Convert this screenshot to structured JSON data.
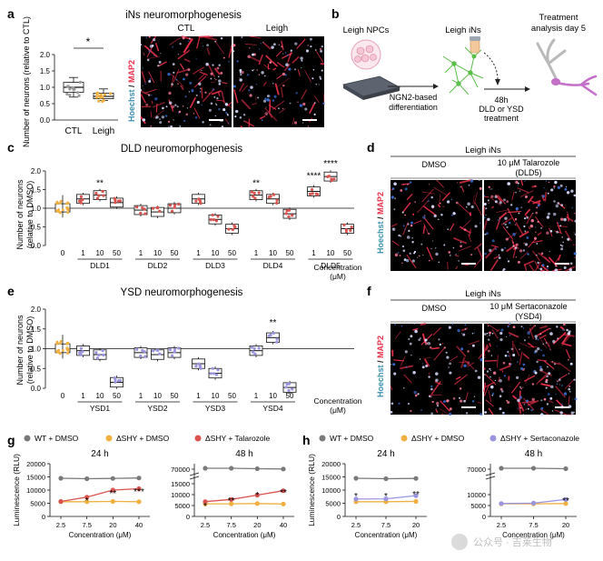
{
  "panels": {
    "a": {
      "letter": "a",
      "title": "iNs neuromorphogenesis",
      "ylabel": "Number of neurons (relative to CTL)",
      "yticks": [
        "0.0",
        "0.5",
        "1.0",
        "1.5",
        "2.0"
      ],
      "categories": [
        "CTL",
        "Leigh"
      ],
      "significance": "*",
      "micro_labels": [
        "CTL",
        "Leigh"
      ],
      "stain": {
        "hoechst": "Hoechst",
        "sep": " / ",
        "map2": "MAP2"
      }
    },
    "b": {
      "letter": "b",
      "steps": [
        "Leigh NPCs",
        "Leigh iNs",
        "Treatment analysis day 5"
      ],
      "arrow1": "NGN2-based differentiation",
      "arrow2": "48h DLD or YSD treatment"
    },
    "c": {
      "letter": "c",
      "title": "DLD neuromorphogenesis",
      "ylabel": "Number of neurons (relative to DMSO)",
      "yticks": [
        "0.0",
        "0.5",
        "1.0",
        "1.5",
        "2.0"
      ],
      "conc_ticks": [
        "0",
        "1",
        "10",
        "50",
        "1",
        "10",
        "50",
        "1",
        "10",
        "50",
        "1",
        "10",
        "50",
        "1",
        "10",
        "50"
      ],
      "groups": [
        "DLD1",
        "DLD2",
        "DLD3",
        "DLD4",
        "DLD5"
      ],
      "xlabel": "Concentration (μM)",
      "sig": [
        "**",
        "**",
        "****",
        "****"
      ]
    },
    "d": {
      "letter": "d",
      "header": "Leigh iNs",
      "col1": "DMSO",
      "col2": "10 μM Talarozole (DLD5)",
      "stain": {
        "hoechst": "Hoechst",
        "sep": " / ",
        "map2": "MAP2"
      }
    },
    "e": {
      "letter": "e",
      "title": "YSD neuromorphogenesis",
      "ylabel": "Number of neurons (relative to DMSO)",
      "yticks": [
        "0.0",
        "0.5",
        "1.0",
        "1.5",
        "2.0"
      ],
      "conc_ticks": [
        "0",
        "1",
        "10",
        "50",
        "1",
        "10",
        "50",
        "1",
        "10",
        "50",
        "1",
        "10",
        "50"
      ],
      "groups": [
        "YSD1",
        "YSD2",
        "YSD3",
        "YSD4"
      ],
      "xlabel": "Concentration (μM)",
      "sig": [
        "**"
      ]
    },
    "f": {
      "letter": "f",
      "header": "Leigh iNs",
      "col1": "DMSO",
      "col2": "10 μM Sertaconazole (YSD4)",
      "stain": {
        "hoechst": "Hoechst",
        "sep": " / ",
        "map2": "MAP2"
      }
    },
    "g": {
      "letter": "g",
      "legend": [
        "WT + DMSO",
        "ΔSHY + DMSO",
        "ΔSHY + Talarozole"
      ],
      "titles": [
        "24 h",
        "48 h"
      ],
      "ylabel": "Luminescence (RLU)",
      "yticks_left": [
        "0",
        "5000",
        "10000",
        "15000",
        "20000"
      ],
      "yticks_right": [
        "0",
        "5000",
        "10000",
        "15000",
        "70000"
      ],
      "xticks": [
        "2.5",
        "7.5",
        "20",
        "40"
      ],
      "xlabel": "Concentration (μM)",
      "sig_left": [
        "*",
        "**",
        "***"
      ],
      "sig_right": [
        "*",
        "**",
        "*",
        "**"
      ]
    },
    "h": {
      "letter": "h",
      "legend": [
        "WT + DMSO",
        "ΔSHY + DMSO",
        "ΔSHY + Sertaconazole"
      ],
      "titles": [
        "24 h",
        "48 h"
      ],
      "ylabel": "Luminescence (RLU)",
      "yticks_left": [
        "0",
        "5000",
        "10000",
        "15000",
        "20000"
      ],
      "yticks_right": [
        "0",
        "5000",
        "10000",
        "70000"
      ],
      "xticks": [
        "2.5",
        "7.5",
        "20"
      ],
      "xlabel": "Concentration (μM)",
      "sig_left": [
        "*",
        "*",
        "**"
      ],
      "sig_right": [
        "**"
      ]
    }
  },
  "watermark": "公众号 · 吉莱生物",
  "colors": {
    "wt": "#7a7a7a",
    "shy": "#f0b040",
    "tal": "#d9534f",
    "ser": "#9b95e0",
    "ctl_dot": "#9a9a9a",
    "leigh_dot": "#f0b040",
    "box_purple": "#9b95e0",
    "box_red": "#d9534f",
    "map2": "#e8304a",
    "hoechst": "#3b6fd6"
  },
  "chart_data": [
    {
      "type": "box",
      "title": "iNs neuromorphogenesis",
      "ylabel": "Number of neurons (relative to CTL)",
      "categories": [
        "CTL",
        "Leigh"
      ],
      "medians": [
        1.0,
        0.72
      ],
      "q1": [
        0.85,
        0.65
      ],
      "q3": [
        1.15,
        0.82
      ],
      "whisker_low": [
        0.7,
        0.6
      ],
      "whisker_high": [
        1.3,
        0.95
      ],
      "ylim": [
        0,
        2.0
      ]
    },
    {
      "type": "box",
      "title": "DLD neuromorphogenesis",
      "ylabel": "Number of neurons (relative to DMSO)",
      "groups": [
        "DLD1",
        "DLD2",
        "DLD3",
        "DLD4",
        "DLD5"
      ],
      "concentrations": [
        "1",
        "10",
        "50"
      ],
      "control_median": 1.0,
      "medians": [
        [
          1.25,
          1.35,
          1.15
        ],
        [
          0.95,
          0.9,
          1.0
        ],
        [
          1.25,
          0.7,
          0.45
        ],
        [
          1.35,
          1.25,
          0.85
        ],
        [
          1.45,
          1.85,
          0.45
        ]
      ],
      "ylim": [
        0,
        2.0
      ]
    },
    {
      "type": "box",
      "title": "YSD neuromorphogenesis",
      "ylabel": "Number of neurons (relative to DMSO)",
      "groups": [
        "YSD1",
        "YSD2",
        "YSD3",
        "YSD4"
      ],
      "concentrations": [
        "1",
        "10",
        "50"
      ],
      "control_median": 1.0,
      "medians": [
        [
          0.95,
          0.85,
          0.15
        ],
        [
          0.9,
          0.85,
          0.9
        ],
        [
          0.62,
          0.38,
          null
        ],
        [
          0.95,
          1.28,
          0.02
        ]
      ],
      "ylim": [
        0,
        2.0
      ]
    },
    {
      "type": "line",
      "title": "24 h",
      "x": [
        "2.5",
        "7.5",
        "20",
        "40"
      ],
      "series": [
        {
          "name": "WT + DMSO",
          "values": [
            14500,
            14300,
            14400,
            14600
          ]
        },
        {
          "name": "ΔSHY + DMSO",
          "values": [
            5600,
            5600,
            5700,
            5600
          ]
        },
        {
          "name": "ΔSHY + Talarozole",
          "values": [
            5700,
            7300,
            10000,
            10500
          ]
        }
      ],
      "ylim": [
        0,
        20000
      ]
    },
    {
      "type": "line",
      "title": "48 h",
      "x": [
        "2.5",
        "7.5",
        "20",
        "40"
      ],
      "series": [
        {
          "name": "WT + DMSO",
          "values": [
            72000,
            72000,
            71000,
            70500
          ]
        },
        {
          "name": "ΔSHY + DMSO",
          "values": [
            5800,
            5800,
            5900,
            5700
          ]
        },
        {
          "name": "ΔSHY + Talarozole",
          "values": [
            6800,
            7800,
            9800,
            11800
          ]
        }
      ]
    },
    {
      "type": "line",
      "title": "24 h",
      "x": [
        "2.5",
        "7.5",
        "20"
      ],
      "series": [
        {
          "name": "WT + DMSO",
          "values": [
            14500,
            14300,
            14400
          ]
        },
        {
          "name": "ΔSHY + DMSO",
          "values": [
            5600,
            5600,
            5700
          ]
        },
        {
          "name": "ΔSHY + Sertaconazole",
          "values": [
            6600,
            6700,
            7900
          ]
        }
      ],
      "ylim": [
        0,
        20000
      ]
    },
    {
      "type": "line",
      "title": "48 h",
      "x": [
        "2.5",
        "7.5",
        "20"
      ],
      "series": [
        {
          "name": "WT + DMSO",
          "values": [
            72000,
            72000,
            71000
          ]
        },
        {
          "name": "ΔSHY + DMSO",
          "values": [
            5800,
            5800,
            5900
          ]
        },
        {
          "name": "ΔSHY + Sertaconazole",
          "values": [
            5900,
            6100,
            7800
          ]
        }
      ]
    }
  ]
}
